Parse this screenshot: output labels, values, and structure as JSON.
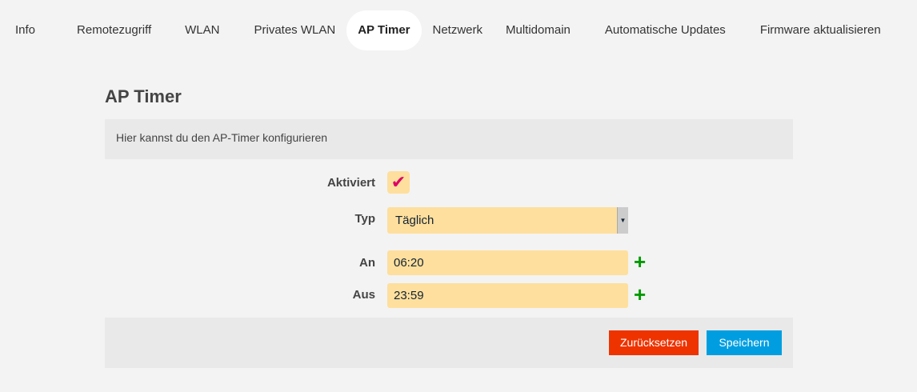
{
  "nav": {
    "tabs": [
      "Info",
      "Remotezugriff",
      "WLAN",
      "Privates WLAN",
      "AP Timer",
      "Netzwerk",
      "Multidomain",
      "Automatische Updates",
      "Firmware aktualisieren"
    ],
    "active": "AP Timer"
  },
  "page": {
    "title": "AP Timer",
    "description": "Hier kannst du den AP-Timer konfigurieren"
  },
  "form": {
    "enabled_label": "Aktiviert",
    "enabled": true,
    "check_glyph": "✔",
    "type_label": "Typ",
    "type_value": "Täglich",
    "on_label": "An",
    "on_value": "06:20",
    "off_label": "Aus",
    "off_value": "23:59",
    "add_glyph": "+"
  },
  "buttons": {
    "reset": "Zurücksetzen",
    "save": "Speichern"
  },
  "colors": {
    "reset": "#ee3300",
    "save": "#009ee0",
    "field": "#fedf9d",
    "check": "#dc0067",
    "add": "#009a00"
  }
}
